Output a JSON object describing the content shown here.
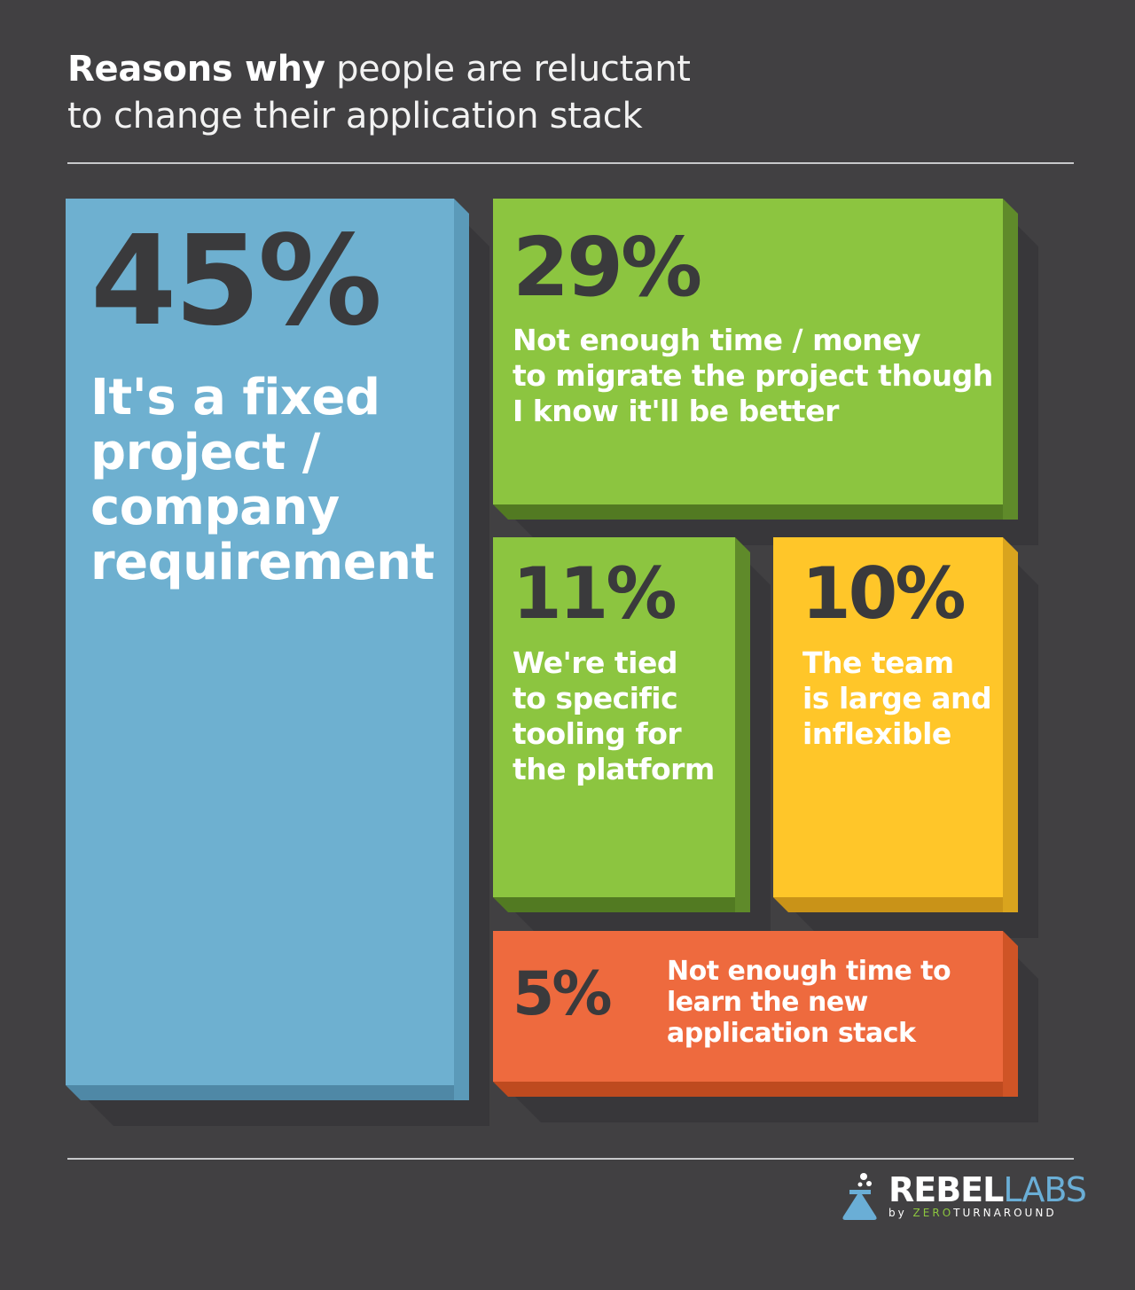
{
  "title": {
    "bold": "Reasons why",
    "regular_line1": "people are reluctant",
    "regular_line2": "to change their application stack"
  },
  "logo": {
    "rebel": "REBEL",
    "labs": "LABS",
    "by": "by",
    "zero": "ZERO",
    "turnaround": "TURNAROUND"
  },
  "colors": {
    "background": "#414042",
    "blue": "#6eb0d0",
    "green": "#8cc540",
    "yellow": "#ffc629",
    "orange": "#ee6a3e",
    "dark_text": "#3a3a3c"
  },
  "chart_data": {
    "type": "treemap",
    "title": "Reasons why people are reluctant to change their application stack",
    "items": [
      {
        "value": 45,
        "label": "45%",
        "description": "It's a fixed\nproject /\ncompany\nrequirement",
        "color": "#6eb0d0"
      },
      {
        "value": 29,
        "label": "29%",
        "description": "Not enough time / money\nto migrate the project though\nI know it'll be better",
        "color": "#8cc540"
      },
      {
        "value": 11,
        "label": "11%",
        "description": "We're tied\nto specific\ntooling for\nthe platform",
        "color": "#8cc540"
      },
      {
        "value": 10,
        "label": "10%",
        "description": "The team\nis large and\ninflexible",
        "color": "#ffc629"
      },
      {
        "value": 5,
        "label": "5%",
        "description": "Not enough time to\nlearn the new\napplication stack",
        "color": "#ee6a3e"
      }
    ]
  }
}
